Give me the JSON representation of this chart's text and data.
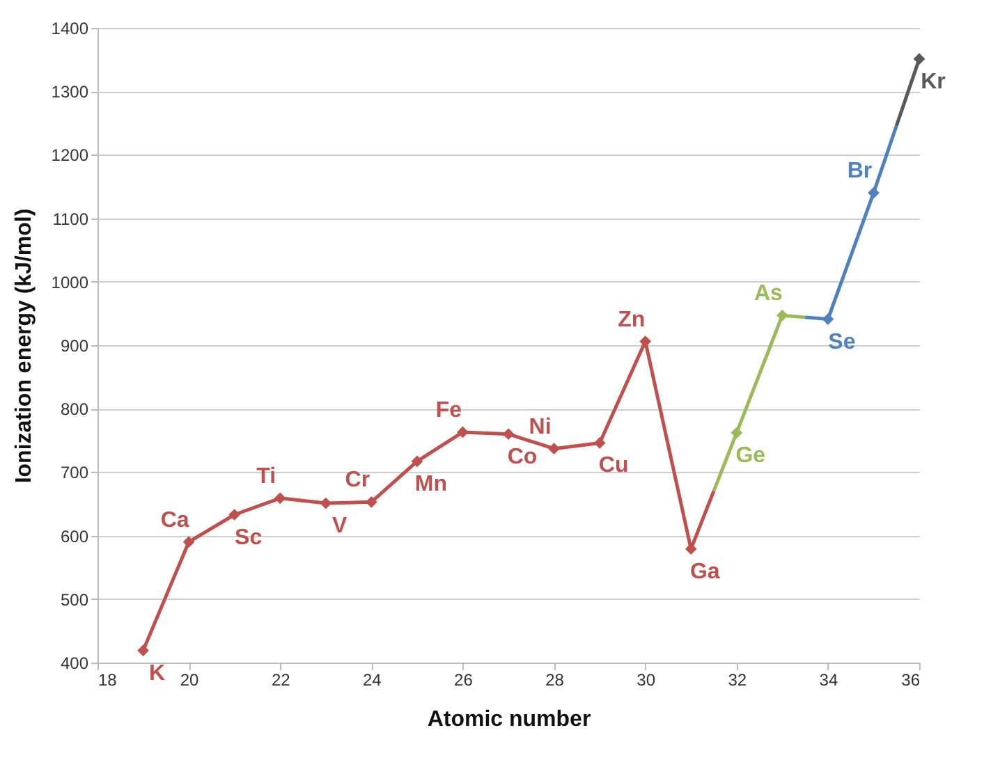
{
  "chart_data": {
    "type": "line",
    "xlabel": "Atomic number",
    "ylabel": "Ionization energy (kJ/mol)",
    "xlim": [
      18,
      36
    ],
    "xticks": [
      18,
      20,
      22,
      24,
      26,
      28,
      30,
      32,
      34,
      36
    ],
    "ylim": [
      400,
      1400
    ],
    "yticks": [
      400,
      500,
      600,
      700,
      800,
      900,
      1000,
      1100,
      1200,
      1300,
      1400
    ],
    "grid": "y",
    "marker": "diamond",
    "line_style": "solid",
    "series": [
      {
        "color": "#c0504d",
        "x": [
          19,
          20,
          21,
          22,
          23,
          24,
          25,
          26,
          27,
          28,
          29,
          30,
          31
        ],
        "values": [
          419,
          590,
          633,
          659,
          651,
          653,
          717,
          763,
          760,
          737,
          746,
          906,
          579
        ]
      },
      {
        "color": "#9bbb59",
        "x": [
          32,
          33
        ],
        "values": [
          762,
          947
        ]
      },
      {
        "color": "#4f81bd",
        "x": [
          34,
          35
        ],
        "values": [
          941,
          1140
        ]
      },
      {
        "color": "#595959",
        "x": [
          36
        ],
        "values": [
          1351
        ]
      }
    ],
    "annotations": [
      {
        "text": "K",
        "x": 19,
        "y": 419
      },
      {
        "text": "Ca",
        "x": 20,
        "y": 590
      },
      {
        "text": "Sc",
        "x": 21,
        "y": 633
      },
      {
        "text": "Ti",
        "x": 22,
        "y": 659
      },
      {
        "text": "V",
        "x": 23,
        "y": 651
      },
      {
        "text": "Cr",
        "x": 24,
        "y": 653
      },
      {
        "text": "Mn",
        "x": 25,
        "y": 717
      },
      {
        "text": "Fe",
        "x": 26,
        "y": 763
      },
      {
        "text": "Co",
        "x": 27,
        "y": 760
      },
      {
        "text": "Ni",
        "x": 28,
        "y": 737
      },
      {
        "text": "Cu",
        "x": 29,
        "y": 746
      },
      {
        "text": "Zn",
        "x": 30,
        "y": 906
      },
      {
        "text": "Ga",
        "x": 31,
        "y": 579
      },
      {
        "text": "Ge",
        "x": 32,
        "y": 762
      },
      {
        "text": "As",
        "x": 33,
        "y": 947
      },
      {
        "text": "Se",
        "x": 34,
        "y": 941
      },
      {
        "text": "Br",
        "x": 35,
        "y": 1140
      },
      {
        "text": "Kr",
        "x": 36,
        "y": 1351
      }
    ]
  }
}
